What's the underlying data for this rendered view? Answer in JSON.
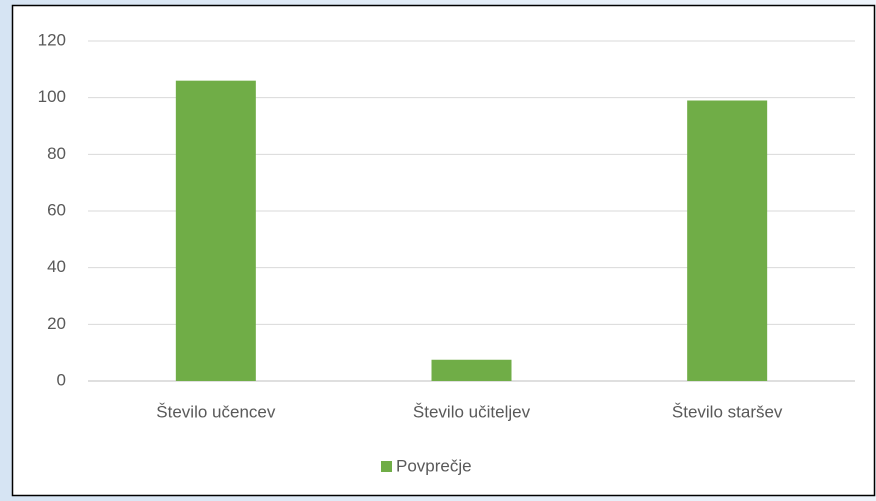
{
  "chart_data": {
    "type": "bar",
    "categories": [
      "Število učencev",
      "Število učiteljev",
      "Število staršev"
    ],
    "series": [
      {
        "name": "Povprečje",
        "color": "#70ad47",
        "values": [
          106,
          7.5,
          99
        ]
      }
    ],
    "ylim": [
      0,
      120
    ],
    "yticks": [
      0,
      20,
      40,
      60,
      80,
      100,
      120
    ],
    "grid": true,
    "legend": "bottom"
  }
}
